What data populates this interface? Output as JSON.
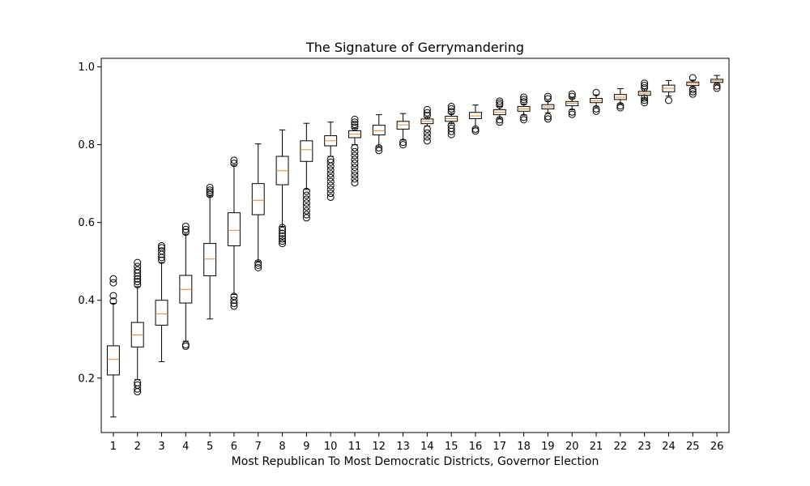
{
  "chart_data": {
    "type": "boxplot",
    "title": "The Signature of Gerrymandering",
    "xlabel": "Most Republican To Most Democratic Districts, Governor Election",
    "ylabel": "",
    "ylim": [
      0.06,
      1.022
    ],
    "yticks": [
      0.2,
      0.4,
      0.6,
      0.8,
      1.0
    ],
    "ytick_labels": [
      "0.2",
      "0.4",
      "0.6",
      "0.8",
      "1.0"
    ],
    "grid": false,
    "legend": "none",
    "colors": {
      "box": "#000000",
      "median": "#ff7f0e",
      "flier": "#000000"
    },
    "categories": [
      "1",
      "2",
      "3",
      "4",
      "5",
      "6",
      "7",
      "8",
      "9",
      "10",
      "11",
      "12",
      "13",
      "14",
      "15",
      "16",
      "17",
      "18",
      "19",
      "20",
      "21",
      "22",
      "23",
      "24",
      "25",
      "26"
    ],
    "boxes": [
      {
        "whislo": 0.1,
        "q1": 0.208,
        "med": 0.248,
        "q3": 0.283,
        "whishi": 0.392,
        "fliers": [
          0.398,
          0.412,
          0.445,
          0.455
        ]
      },
      {
        "whislo": 0.196,
        "q1": 0.28,
        "med": 0.311,
        "q3": 0.343,
        "whishi": 0.435,
        "fliers": [
          0.165,
          0.172,
          0.182,
          0.188,
          0.44,
          0.448,
          0.455,
          0.462,
          0.47,
          0.478,
          0.487,
          0.497
        ]
      },
      {
        "whislo": 0.242,
        "q1": 0.336,
        "med": 0.365,
        "q3": 0.4,
        "whishi": 0.497,
        "fliers": [
          0.503,
          0.51,
          0.518,
          0.527,
          0.535,
          0.54
        ]
      },
      {
        "whislo": 0.295,
        "q1": 0.393,
        "med": 0.428,
        "q3": 0.464,
        "whishi": 0.57,
        "fliers": [
          0.282,
          0.286,
          0.575,
          0.582,
          0.59
        ]
      },
      {
        "whislo": 0.352,
        "q1": 0.463,
        "med": 0.506,
        "q3": 0.546,
        "whishi": 0.668,
        "fliers": [
          0.672,
          0.678,
          0.683,
          0.69
        ]
      },
      {
        "whislo": 0.415,
        "q1": 0.54,
        "med": 0.58,
        "q3": 0.625,
        "whishi": 0.748,
        "fliers": [
          0.385,
          0.392,
          0.4,
          0.41,
          0.752,
          0.76
        ]
      },
      {
        "whislo": 0.5,
        "q1": 0.62,
        "med": 0.657,
        "q3": 0.7,
        "whishi": 0.802,
        "fliers": [
          0.484,
          0.49,
          0.496
        ]
      },
      {
        "whislo": 0.59,
        "q1": 0.697,
        "med": 0.733,
        "q3": 0.77,
        "whishi": 0.838,
        "fliers": [
          0.546,
          0.552,
          0.558,
          0.565,
          0.572,
          0.58,
          0.587
        ]
      },
      {
        "whislo": 0.685,
        "q1": 0.757,
        "med": 0.787,
        "q3": 0.81,
        "whishi": 0.855,
        "fliers": [
          0.612,
          0.62,
          0.63,
          0.64,
          0.65,
          0.66,
          0.67,
          0.68
        ]
      },
      {
        "whislo": 0.77,
        "q1": 0.797,
        "med": 0.81,
        "q3": 0.823,
        "whishi": 0.858,
        "fliers": [
          0.665,
          0.675,
          0.685,
          0.695,
          0.705,
          0.715,
          0.725,
          0.735,
          0.745,
          0.755,
          0.762
        ]
      },
      {
        "whislo": 0.8,
        "q1": 0.818,
        "med": 0.827,
        "q3": 0.836,
        "whishi": 0.842,
        "fliers": [
          0.702,
          0.712,
          0.722,
          0.732,
          0.742,
          0.752,
          0.762,
          0.772,
          0.782,
          0.792,
          0.845,
          0.852,
          0.858,
          0.865
        ]
      },
      {
        "whislo": 0.795,
        "q1": 0.825,
        "med": 0.836,
        "q3": 0.85,
        "whishi": 0.877,
        "fliers": [
          0.785,
          0.792
        ]
      },
      {
        "whislo": 0.812,
        "q1": 0.84,
        "med": 0.851,
        "q3": 0.86,
        "whishi": 0.88,
        "fliers": [
          0.8,
          0.806
        ]
      },
      {
        "whislo": 0.848,
        "q1": 0.854,
        "med": 0.86,
        "q3": 0.866,
        "whishi": 0.871,
        "fliers": [
          0.81,
          0.82,
          0.83,
          0.84,
          0.875,
          0.882,
          0.89
        ]
      },
      {
        "whislo": 0.854,
        "q1": 0.86,
        "med": 0.867,
        "q3": 0.873,
        "whishi": 0.88,
        "fliers": [
          0.826,
          0.834,
          0.842,
          0.85,
          0.885,
          0.892,
          0.898
        ]
      },
      {
        "whislo": 0.843,
        "q1": 0.867,
        "med": 0.874,
        "q3": 0.883,
        "whishi": 0.902,
        "fliers": [
          0.835,
          0.84
        ]
      },
      {
        "whislo": 0.868,
        "q1": 0.877,
        "med": 0.883,
        "q3": 0.89,
        "whishi": 0.898,
        "fliers": [
          0.858,
          0.864,
          0.902,
          0.907,
          0.912
        ]
      },
      {
        "whislo": 0.876,
        "q1": 0.886,
        "med": 0.892,
        "q3": 0.898,
        "whishi": 0.904,
        "fliers": [
          0.864,
          0.87,
          0.91,
          0.916,
          0.922
        ]
      },
      {
        "whislo": 0.882,
        "q1": 0.892,
        "med": 0.897,
        "q3": 0.903,
        "whishi": 0.912,
        "fliers": [
          0.866,
          0.872,
          0.918,
          0.924
        ]
      },
      {
        "whislo": 0.89,
        "q1": 0.9,
        "med": 0.906,
        "q3": 0.911,
        "whishi": 0.92,
        "fliers": [
          0.878,
          0.884,
          0.924,
          0.93
        ]
      },
      {
        "whislo": 0.897,
        "q1": 0.908,
        "med": 0.913,
        "q3": 0.919,
        "whishi": 0.928,
        "fliers": [
          0.886,
          0.892,
          0.934
        ]
      },
      {
        "whislo": 0.905,
        "q1": 0.916,
        "med": 0.922,
        "q3": 0.929,
        "whishi": 0.944,
        "fliers": [
          0.895,
          0.9
        ]
      },
      {
        "whislo": 0.918,
        "q1": 0.927,
        "med": 0.932,
        "q3": 0.937,
        "whishi": 0.943,
        "fliers": [
          0.908,
          0.914,
          0.92,
          0.946,
          0.952,
          0.958
        ]
      },
      {
        "whislo": 0.925,
        "q1": 0.936,
        "med": 0.945,
        "q3": 0.953,
        "whishi": 0.965,
        "fliers": [
          0.914
        ]
      },
      {
        "whislo": 0.947,
        "q1": 0.952,
        "med": 0.957,
        "q3": 0.961,
        "whishi": 0.966,
        "fliers": [
          0.93,
          0.936,
          0.942,
          0.972
        ]
      },
      {
        "whislo": 0.955,
        "q1": 0.96,
        "med": 0.964,
        "q3": 0.968,
        "whishi": 0.978,
        "fliers": [
          0.945,
          0.951
        ]
      }
    ]
  }
}
